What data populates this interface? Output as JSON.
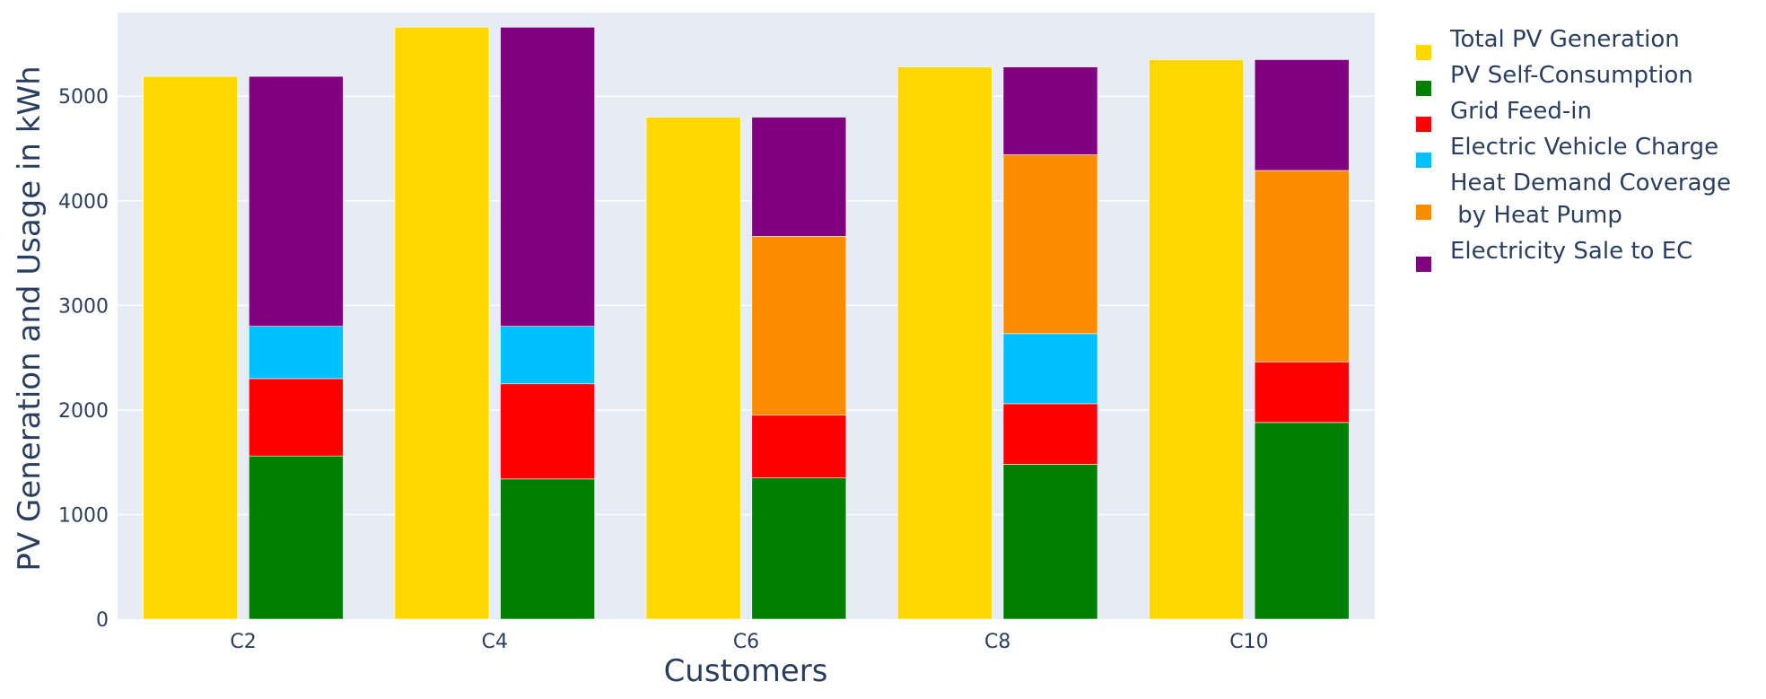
{
  "chart_data": {
    "type": "bar",
    "barmode": "group-with-stack",
    "categories": [
      "C2",
      "C4",
      "C6",
      "C8",
      "C10"
    ],
    "xlabel": "Customers",
    "ylabel": "PV Generation and Usage in kWh",
    "ylim": [
      0,
      5800
    ],
    "yticks": [
      0,
      1000,
      2000,
      3000,
      4000,
      5000
    ],
    "grid": true,
    "legend_position": "right",
    "total_series": {
      "name": "Total PV Generation",
      "color": "#FFD700",
      "values": [
        5190,
        5660,
        4800,
        5280,
        5350
      ]
    },
    "stacked_series": [
      {
        "name": "PV Self-Consumption",
        "color": "#008000",
        "values": [
          1560,
          1340,
          1350,
          1480,
          1880
        ]
      },
      {
        "name": "Grid Feed-in",
        "color": "#FF0000",
        "values": [
          740,
          910,
          600,
          580,
          580
        ]
      },
      {
        "name": "Electric Vehicle Charge",
        "color": "#00BFFF",
        "values": [
          500,
          550,
          0,
          670,
          0
        ]
      },
      {
        "name": "Heat Demand Coverage\n by Heat Pump",
        "color": "#FF8C00",
        "values": [
          0,
          0,
          1710,
          1710,
          1830
        ]
      },
      {
        "name": "Electricity Sale to EC",
        "color": "#800080",
        "values": [
          2390,
          2860,
          1140,
          840,
          1060
        ]
      }
    ],
    "colors": {
      "plot_bg": "#E5ECF6",
      "grid": "#FFFFFF",
      "text": "#2a3f5f"
    }
  }
}
